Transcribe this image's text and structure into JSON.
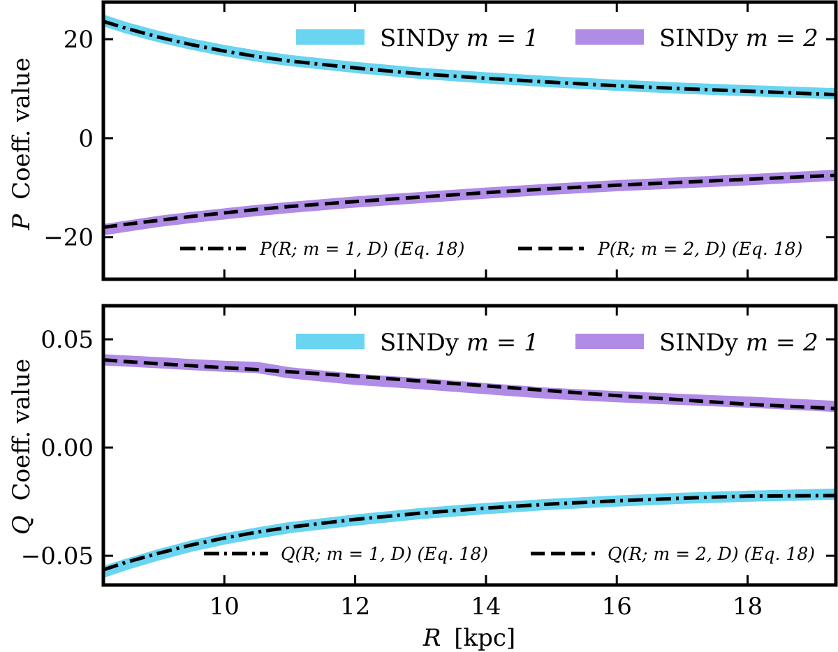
{
  "chart_data": [
    {
      "type": "line",
      "id": "P",
      "ylabel_symbol": "P",
      "ylabel_text": "Coeff. value",
      "xlabel": "",
      "xlim": [
        8.15,
        19.35
      ],
      "ylim": [
        -28.5,
        27.5
      ],
      "yticks": [
        -20,
        0,
        20
      ],
      "ytick_labels": [
        "−20",
        "0",
        "20"
      ],
      "xticks": [
        10,
        12,
        14,
        16,
        18
      ],
      "xtick_labels": [
        "",
        "",
        "",
        "",
        ""
      ],
      "series": [
        {
          "name": "SINDy m = 1",
          "style": "band",
          "color": "#69d5f0",
          "x": [
            8.15,
            8.5,
            9,
            9.5,
            10,
            10.5,
            11,
            12,
            13,
            14,
            15,
            16,
            17,
            18,
            19.35
          ],
          "values": [
            23.8,
            22.3,
            20.5,
            19.0,
            17.7,
            16.6,
            15.7,
            14.3,
            13.1,
            12.2,
            11.4,
            10.7,
            10.1,
            9.6,
            9.0
          ]
        },
        {
          "name": "SINDy m = 2",
          "style": "band",
          "color": "#b08ce6",
          "x": [
            8.15,
            8.5,
            9,
            9.5,
            10,
            10.5,
            11,
            12,
            13,
            14,
            15,
            16,
            17,
            18,
            19.35
          ],
          "values": [
            -18.5,
            -17.8,
            -16.8,
            -16.0,
            -15.3,
            -14.6,
            -14.0,
            -12.9,
            -12.0,
            -11.1,
            -10.3,
            -9.6,
            -9.0,
            -8.4,
            -7.5
          ]
        },
        {
          "name": "P(R; m = 1, D) (Eq. 18)",
          "style": "dashdot",
          "color": "#000000",
          "x": [
            8.15,
            8.5,
            9,
            9.5,
            10,
            10.5,
            11,
            12,
            13,
            14,
            15,
            16,
            17,
            18,
            19.35
          ],
          "values": [
            23.6,
            22.2,
            20.4,
            18.9,
            17.6,
            16.5,
            15.6,
            14.2,
            13.0,
            12.1,
            11.3,
            10.6,
            10.0,
            9.5,
            8.8
          ]
        },
        {
          "name": "P(R; m = 2, D) (Eq. 18)",
          "style": "dashed",
          "color": "#000000",
          "x": [
            8.15,
            8.5,
            9,
            9.5,
            10,
            10.5,
            11,
            12,
            13,
            14,
            15,
            16,
            17,
            18,
            19.35
          ],
          "values": [
            -18.0,
            -17.4,
            -16.6,
            -15.8,
            -15.1,
            -14.4,
            -13.8,
            -12.8,
            -11.9,
            -11.0,
            -10.2,
            -9.5,
            -8.9,
            -8.3,
            -7.5
          ]
        }
      ],
      "legend_top": [
        {
          "label_text": "SINDy ",
          "label_math": "m = 1",
          "color": "#69d5f0"
        },
        {
          "label_text": "SINDy ",
          "label_math": "m = 2",
          "color": "#b08ce6"
        }
      ],
      "legend_bottom": [
        {
          "label": "P(R; m = 1, D)  (Eq. 18)",
          "style": "dashdot"
        },
        {
          "label": "P(R; m = 2, D)  (Eq. 18)",
          "style": "dashed"
        }
      ]
    },
    {
      "type": "line",
      "id": "Q",
      "ylabel_symbol": "Q",
      "ylabel_text": "Coeff. value",
      "xlabel_symbol": "R",
      "xlabel_text": "[kpc]",
      "xlim": [
        8.15,
        19.35
      ],
      "ylim": [
        -0.0635,
        0.0655
      ],
      "yticks": [
        -0.05,
        0.0,
        0.05
      ],
      "ytick_labels": [
        "−0.05",
        "0.00",
        "0.05"
      ],
      "xticks": [
        10,
        12,
        14,
        16,
        18
      ],
      "xtick_labels": [
        "10",
        "12",
        "14",
        "16",
        "18"
      ],
      "series": [
        {
          "name": "SINDy m = 1",
          "style": "band",
          "color": "#69d5f0",
          "x": [
            8.15,
            8.5,
            9,
            9.5,
            10,
            10.5,
            11,
            12,
            13,
            14,
            15,
            16,
            17,
            18,
            19.35
          ],
          "values": [
            -0.0575,
            -0.054,
            -0.0495,
            -0.0455,
            -0.0422,
            -0.0395,
            -0.037,
            -0.0335,
            -0.0305,
            -0.0282,
            -0.0262,
            -0.0247,
            -0.0234,
            -0.0225,
            -0.0215
          ]
        },
        {
          "name": "SINDy m = 2",
          "style": "band",
          "color": "#b08ce6",
          "x": [
            8.15,
            8.5,
            9,
            9.5,
            10,
            10.5,
            11,
            12,
            13,
            14,
            15,
            16,
            17,
            18,
            19.35
          ],
          "values": [
            0.0405,
            0.04,
            0.0392,
            0.0383,
            0.0375,
            0.037,
            0.0345,
            0.0315,
            0.0295,
            0.0272,
            0.025,
            0.0235,
            0.0222,
            0.021,
            0.019
          ]
        },
        {
          "name": "Q(R; m = 1, D) (Eq. 18)",
          "style": "dashdot",
          "color": "#000000",
          "x": [
            8.15,
            8.5,
            9,
            9.5,
            10,
            10.5,
            11,
            12,
            13,
            14,
            15,
            16,
            17,
            18,
            19.35
          ],
          "values": [
            -0.0565,
            -0.053,
            -0.0488,
            -0.045,
            -0.0418,
            -0.0391,
            -0.0368,
            -0.0332,
            -0.0303,
            -0.028,
            -0.0261,
            -0.0246,
            -0.0234,
            -0.0224,
            -0.0222
          ]
        },
        {
          "name": "Q(R; m = 2, D) (Eq. 18)",
          "style": "dashed",
          "color": "#000000",
          "x": [
            8.15,
            8.5,
            9,
            9.5,
            10,
            10.5,
            11,
            12,
            13,
            14,
            15,
            16,
            17,
            18,
            19.35
          ],
          "values": [
            0.0405,
            0.0397,
            0.0387,
            0.0378,
            0.0369,
            0.036,
            0.035,
            0.033,
            0.0307,
            0.0285,
            0.0262,
            0.024,
            0.022,
            0.02,
            0.018
          ]
        }
      ],
      "legend_top": [
        {
          "label_text": "SINDy ",
          "label_math": "m = 1",
          "color": "#69d5f0"
        },
        {
          "label_text": "SINDy ",
          "label_math": "m = 2",
          "color": "#b08ce6"
        }
      ],
      "legend_bottom": [
        {
          "label": "Q(R; m = 1, D)  (Eq. 18)",
          "style": "dashdot"
        },
        {
          "label": "Q(R; m = 2, D)  (Eq. 18)",
          "style": "dashed"
        }
      ]
    }
  ]
}
